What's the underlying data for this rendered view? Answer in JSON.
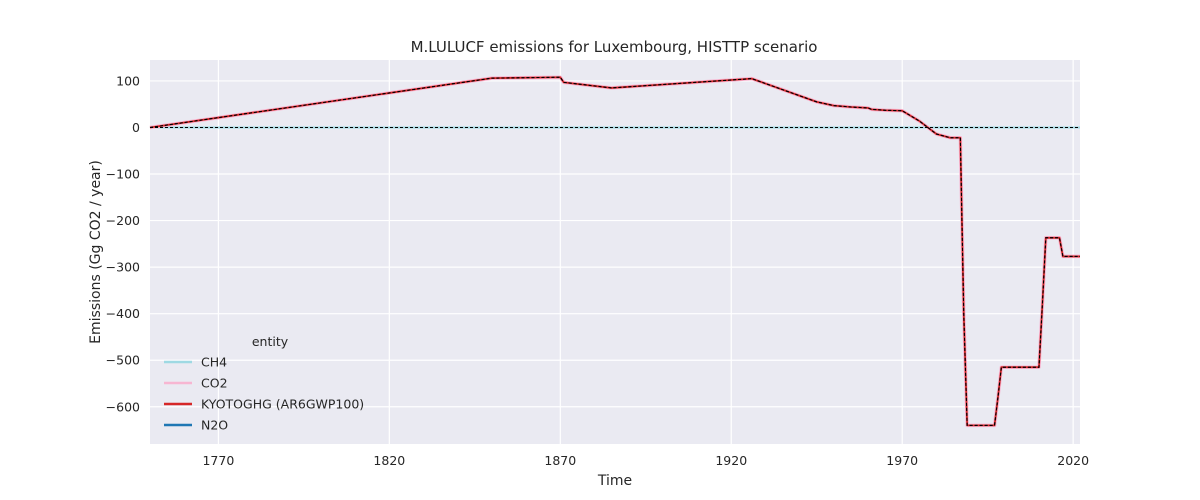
{
  "chart_data": {
    "type": "line",
    "title": "M.LULUCF emissions for Luxembourg, HISTTP scenario",
    "xlabel": "Time",
    "ylabel": "Emissions (Gg CO2 / year)",
    "xlim": [
      1750,
      2022
    ],
    "ylim": [
      -680,
      145
    ],
    "xticks": [
      1770,
      1820,
      1870,
      1920,
      1970,
      2020
    ],
    "yticks": [
      100,
      0,
      -100,
      -200,
      -300,
      -400,
      -500,
      -600
    ],
    "grid": true,
    "legend": {
      "title": "entity",
      "placement": "lower-left",
      "entries": [
        {
          "label": "CH4",
          "color": "#9ed9e3"
        },
        {
          "label": "CO2",
          "color": "#f7b6d2"
        },
        {
          "label": "KYOTOGHG (AR6GWP100)",
          "color": "#d62728"
        },
        {
          "label": "N2O",
          "color": "#1f77b4"
        }
      ]
    },
    "series": [
      {
        "name": "CH4",
        "color": "#9ed9e3",
        "x": [
          1750,
          2022
        ],
        "y": [
          0,
          0
        ]
      },
      {
        "name": "CO2",
        "color": "#f7b6d2",
        "x": [
          1750,
          1850,
          1870,
          1871,
          1885,
          1926,
          1945,
          1950,
          1955,
          1960,
          1961,
          1965,
          1970,
          1975,
          1980,
          1984,
          1987,
          1988,
          1989,
          1997,
          1998,
          1999,
          2010,
          2011,
          2012,
          2016,
          2017,
          2022
        ],
        "y": [
          0,
          106,
          108,
          97,
          85,
          105,
          55,
          47,
          44,
          42,
          39,
          37,
          36,
          14,
          -14,
          -22,
          -22,
          -400,
          -640,
          -640,
          -580,
          -515,
          -515,
          -380,
          -237,
          -237,
          -277,
          -277
        ]
      },
      {
        "name": "KYOTOGHG (AR6GWP100)",
        "color": "#d62728",
        "x": [
          1750,
          1850,
          1870,
          1871,
          1885,
          1926,
          1945,
          1950,
          1955,
          1960,
          1961,
          1965,
          1970,
          1975,
          1980,
          1984,
          1987,
          1988,
          1989,
          1997,
          1998,
          1999,
          2010,
          2011,
          2012,
          2016,
          2017,
          2022
        ],
        "y": [
          0,
          106,
          108,
          97,
          85,
          105,
          55,
          47,
          44,
          42,
          39,
          37,
          36,
          14,
          -14,
          -22,
          -22,
          -400,
          -640,
          -640,
          -580,
          -515,
          -515,
          -380,
          -237,
          -237,
          -277,
          -277
        ]
      },
      {
        "name": "N2O",
        "color": "#1f77b4",
        "x": [
          1750,
          2022
        ],
        "y": [
          0,
          0
        ]
      }
    ],
    "overlay": {
      "color": "#000000",
      "dash": "3,2"
    }
  }
}
